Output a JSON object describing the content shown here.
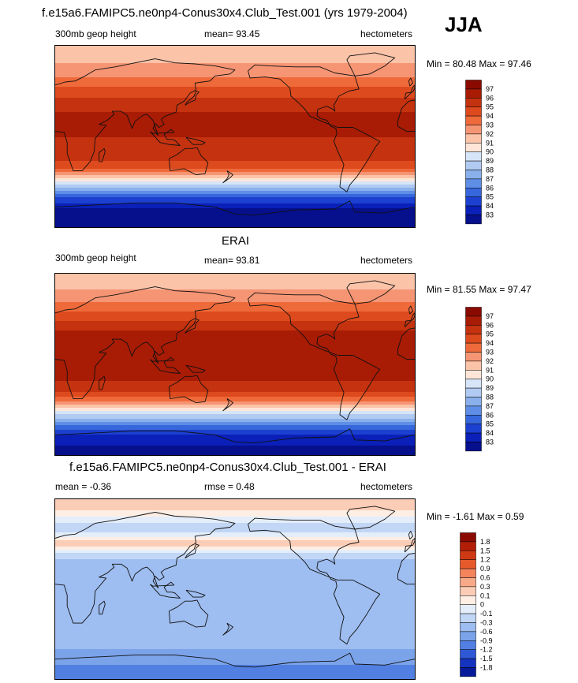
{
  "header": {
    "title": "f.e15a6.FAMIPC5.ne0np4-Conus30x4.Club_Test.001 (yrs 1979-2004)",
    "season": "JJA"
  },
  "chart_data": [
    {
      "type": "heatmap",
      "panel": "test",
      "title": "",
      "left_label": "300mb geop height",
      "center_label": "mean=  93.45",
      "right_label": "hectometers",
      "minmax": "Min =  80.48 Max =  97.46",
      "mean": 93.45,
      "min": 80.48,
      "max": 97.46,
      "levels": [
        "97",
        "96",
        "95",
        "94",
        "93",
        "92",
        "91",
        "90",
        "89",
        "88",
        "87",
        "86",
        "85",
        "84",
        "83"
      ],
      "colors": [
        "#8b0a00",
        "#a81b05",
        "#c4320f",
        "#dd4a1e",
        "#ef6a3a",
        "#f69574",
        "#fbc3a8",
        "#fde6d8",
        "#d6e5f8",
        "#b0caf2",
        "#8ab0ec",
        "#5e8ee6",
        "#3767dc",
        "#1c40cf",
        "#0a20b8",
        "#060f8c"
      ],
      "zonal_profile": [
        {
          "lat": 90,
          "value": 91.6
        },
        {
          "lat": 75,
          "value": 91.8
        },
        {
          "lat": 60,
          "value": 92.8
        },
        {
          "lat": 45,
          "value": 94.4
        },
        {
          "lat": 30,
          "value": 95.9
        },
        {
          "lat": 15,
          "value": 96.2
        },
        {
          "lat": 0,
          "value": 96.0
        },
        {
          "lat": -15,
          "value": 95.9
        },
        {
          "lat": -30,
          "value": 94.5
        },
        {
          "lat": -40,
          "value": 91.5
        },
        {
          "lat": -50,
          "value": 88.5
        },
        {
          "lat": -60,
          "value": 85.2
        },
        {
          "lat": -70,
          "value": 83.2
        },
        {
          "lat": -90,
          "value": 81.0
        }
      ]
    },
    {
      "type": "heatmap",
      "panel": "obs",
      "title": "ERAI",
      "left_label": "300mb geop height",
      "center_label": "mean=  93.81",
      "right_label": "hectometers",
      "minmax": "Min =  81.55 Max =  97.47",
      "mean": 93.81,
      "min": 81.55,
      "max": 97.47,
      "levels": [
        "97",
        "96",
        "95",
        "94",
        "93",
        "92",
        "91",
        "90",
        "89",
        "88",
        "87",
        "86",
        "85",
        "84",
        "83"
      ],
      "colors": [
        "#8b0a00",
        "#a81b05",
        "#c4320f",
        "#dd4a1e",
        "#ef6a3a",
        "#f69574",
        "#fbc3a8",
        "#fde6d8",
        "#d6e5f8",
        "#b0caf2",
        "#8ab0ec",
        "#5e8ee6",
        "#3767dc",
        "#1c40cf",
        "#0a20b8",
        "#060f8c"
      ],
      "zonal_profile": [
        {
          "lat": 90,
          "value": 91.2
        },
        {
          "lat": 75,
          "value": 92.0
        },
        {
          "lat": 60,
          "value": 93.2
        },
        {
          "lat": 45,
          "value": 94.8
        },
        {
          "lat": 30,
          "value": 96.3
        },
        {
          "lat": 15,
          "value": 96.8
        },
        {
          "lat": 0,
          "value": 96.6
        },
        {
          "lat": -15,
          "value": 96.2
        },
        {
          "lat": -30,
          "value": 94.8
        },
        {
          "lat": -40,
          "value": 92.0
        },
        {
          "lat": -50,
          "value": 89.0
        },
        {
          "lat": -60,
          "value": 86.0
        },
        {
          "lat": -70,
          "value": 84.0
        },
        {
          "lat": -90,
          "value": 82.0
        }
      ]
    },
    {
      "type": "heatmap",
      "panel": "diff",
      "title": "f.e15a6.FAMIPC5.ne0np4-Conus30x4.Club_Test.001 - ERAI",
      "left_label": "mean =  -0.36",
      "center_label": "rmse =   0.48",
      "right_label": "hectometers",
      "minmax": "Min =  -1.61 Max =   0.59",
      "mean": -0.36,
      "rmse": 0.48,
      "min": -1.61,
      "max": 0.59,
      "levels": [
        "1.8",
        "1.5",
        "1.2",
        "0.9",
        "0.6",
        "0.3",
        "0.1",
        "0",
        "-0.1",
        "-0.3",
        "-0.6",
        "-0.9",
        "-1.2",
        "-1.5",
        "-1.8"
      ],
      "colors": [
        "#8b0a00",
        "#b21e06",
        "#cf3a14",
        "#e75a2c",
        "#f3845c",
        "#f8a988",
        "#fbcdb6",
        "#feeee4",
        "#e4eefb",
        "#c2d6f5",
        "#9ebdf0",
        "#7ba3ea",
        "#5280e2",
        "#2f58d6",
        "#1434c0",
        "#061a9a"
      ],
      "zonal_profile": [
        {
          "lat": 90,
          "value": 0.25
        },
        {
          "lat": 75,
          "value": 0.05
        },
        {
          "lat": 60,
          "value": -0.2
        },
        {
          "lat": 45,
          "value": 0.2
        },
        {
          "lat": 30,
          "value": -0.3
        },
        {
          "lat": 15,
          "value": -0.5
        },
        {
          "lat": 0,
          "value": -0.5
        },
        {
          "lat": -15,
          "value": -0.45
        },
        {
          "lat": -30,
          "value": -0.35
        },
        {
          "lat": -45,
          "value": -0.45
        },
        {
          "lat": -60,
          "value": -0.6
        },
        {
          "lat": -75,
          "value": -0.9
        },
        {
          "lat": -90,
          "value": -1.2
        }
      ]
    }
  ]
}
